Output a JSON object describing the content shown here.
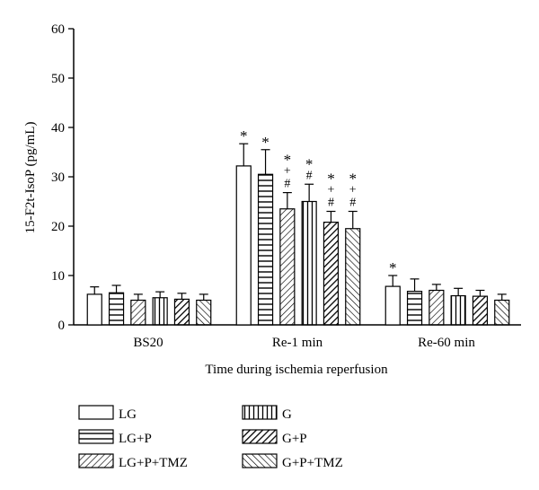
{
  "chart_data": {
    "type": "bar",
    "title": "",
    "xlabel": "Time during ischemia reperfusion",
    "ylabel": "15-F2t-IsoP (pg/mL)",
    "ylim": [
      0,
      60
    ],
    "yticks": [
      0,
      10,
      20,
      30,
      40,
      50,
      60
    ],
    "grid": false,
    "legend_position": "bottom",
    "categories": [
      "BS20",
      "Re-1 min",
      "Re-60 min"
    ],
    "series": [
      {
        "name": "LG",
        "pattern": "open",
        "values": [
          6.2,
          32.2,
          7.8
        ],
        "errors": [
          1.5,
          4.5,
          2.2
        ],
        "annotations": [
          "",
          "*",
          "*"
        ]
      },
      {
        "name": "LG+P",
        "pattern": "horizontal-lines",
        "values": [
          6.5,
          30.5,
          6.8
        ],
        "errors": [
          1.5,
          5.0,
          2.5
        ],
        "annotations": [
          "",
          "*",
          ""
        ]
      },
      {
        "name": "LG+P+TMZ",
        "pattern": "diagonal-lines-dense",
        "values": [
          5.0,
          23.5,
          7.0
        ],
        "errors": [
          1.2,
          3.3,
          1.2
        ],
        "annotations": [
          "",
          "*\n+\n#",
          ""
        ]
      },
      {
        "name": "G",
        "pattern": "vertical-lines",
        "values": [
          5.5,
          25.0,
          5.9
        ],
        "errors": [
          1.2,
          3.5,
          1.5
        ],
        "annotations": [
          "",
          "*\n#",
          ""
        ]
      },
      {
        "name": "G+P",
        "pattern": "diagonal-lines-bold",
        "values": [
          5.2,
          20.8,
          5.8
        ],
        "errors": [
          1.2,
          2.2,
          1.2
        ],
        "annotations": [
          "",
          "*\n+\n#",
          ""
        ]
      },
      {
        "name": "G+P+TMZ",
        "pattern": "back-diagonal-lines",
        "values": [
          5.0,
          19.5,
          5.0
        ],
        "errors": [
          1.2,
          3.5,
          1.2
        ],
        "annotations": [
          "",
          "*\n+\n#",
          ""
        ]
      }
    ]
  }
}
